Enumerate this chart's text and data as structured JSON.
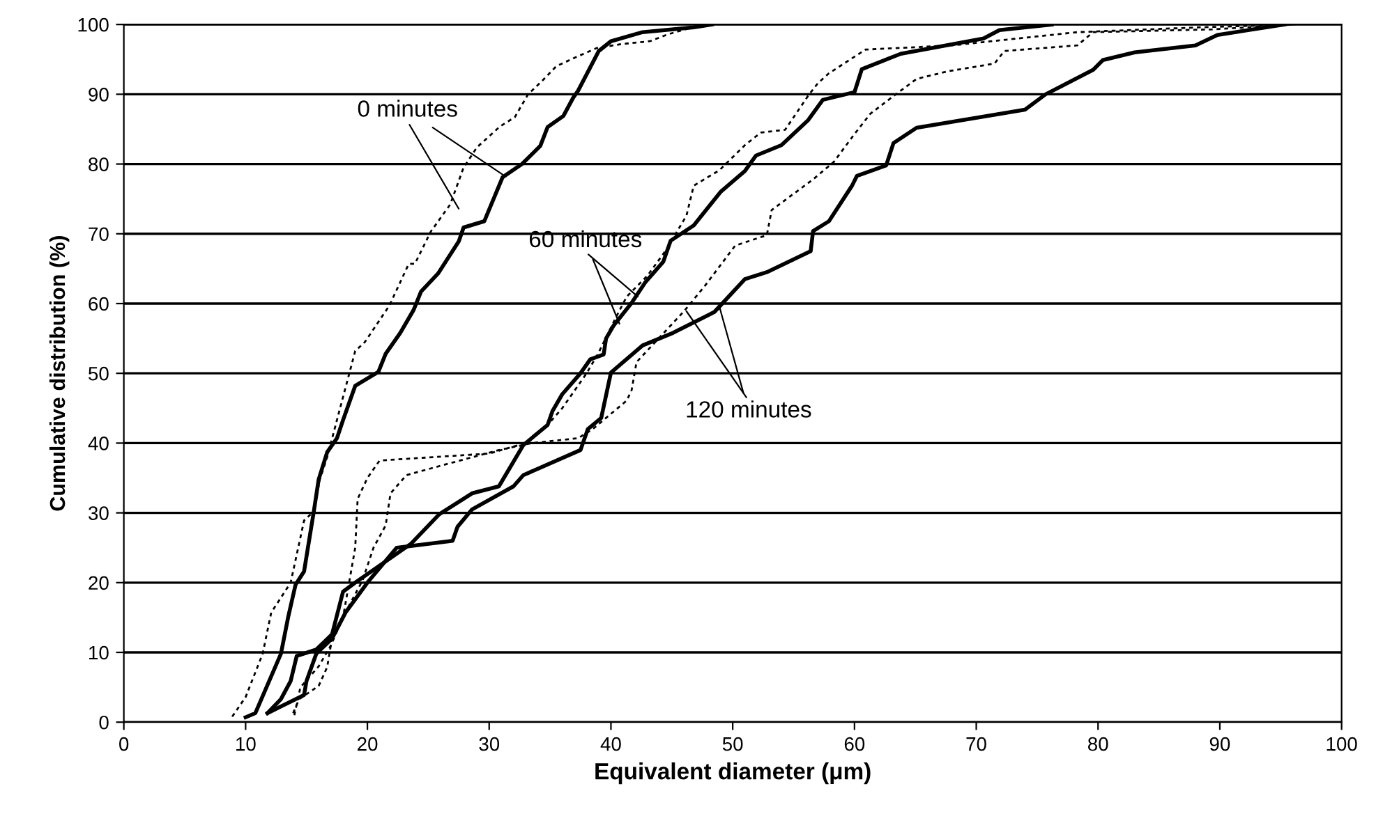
{
  "chart_data": {
    "type": "line",
    "xlabel": "Equivalent diameter (μm)",
    "ylabel": "Cumulative distribution (%)",
    "xlim": [
      0,
      100
    ],
    "ylim": [
      0,
      100
    ],
    "xticks": [
      0,
      10,
      20,
      30,
      40,
      50,
      60,
      70,
      80,
      90,
      100
    ],
    "yticks": [
      0,
      10,
      20,
      30,
      40,
      50,
      60,
      70,
      80,
      90,
      100
    ],
    "grid": "y",
    "marker": "none",
    "series": [
      {
        "color": "#000000",
        "line_style": "solid",
        "x": [
          10.0,
          10.8,
          12.9,
          13.5,
          14.1,
          14.8,
          15.6,
          16.0,
          16.7,
          17.5,
          18.0,
          19.0,
          20.9,
          21.5,
          22.7,
          23.8,
          24.4,
          25.8,
          27.5,
          27.9,
          29.6,
          31.1,
          32.7,
          34.2,
          34.8,
          36.1,
          36.9,
          37.3,
          39.0,
          40.0,
          42.6,
          46.8,
          48.3
        ],
        "values": [
          0.7,
          1.3,
          9.8,
          15.1,
          19.7,
          21.6,
          30.2,
          34.8,
          38.7,
          40.7,
          43.3,
          48.2,
          50.2,
          52.8,
          55.8,
          59.1,
          61.7,
          64.3,
          68.9,
          70.9,
          71.8,
          78.1,
          80.0,
          82.6,
          85.3,
          86.9,
          89.5,
          90.5,
          96.2,
          97.6,
          98.9,
          99.6,
          100
        ]
      },
      {
        "color": "#000000",
        "line_style": "dotted",
        "x": [
          8.9,
          10.0,
          11.4,
          12.1,
          13.7,
          14.8,
          15.6,
          16.1,
          16.7,
          17.5,
          19.0,
          19.8,
          20.3,
          21.8,
          23.4,
          23.9,
          25.2,
          26.8,
          27.9,
          29.0,
          30.9,
          32.1,
          33.2,
          34.4,
          35.5,
          37.1,
          38.8,
          40.9,
          43.2,
          44.7,
          47.5
        ],
        "values": [
          0.8,
          3.6,
          9.8,
          15.7,
          20.0,
          28.9,
          30.2,
          34.8,
          38.0,
          43.3,
          53.2,
          54.5,
          55.8,
          59.7,
          65.7,
          65.7,
          70.3,
          74.2,
          79.5,
          82.4,
          85.4,
          86.7,
          90.0,
          92.0,
          94.0,
          95.3,
          96.6,
          97.2,
          97.6,
          98.6,
          100
        ]
      },
      {
        "color": "#000000",
        "line_style": "solid",
        "x": [
          11.8,
          12.9,
          13.7,
          14.2,
          15.8,
          17.1,
          18.0,
          19.0,
          23.6,
          25.9,
          28.6,
          30.8,
          32.8,
          34.8,
          35.2,
          36.0,
          37.5,
          38.3,
          39.4,
          39.6,
          40.2,
          41.7,
          42.8,
          44.3,
          44.9,
          46.8,
          49.0,
          51.0,
          51.9,
          54.0,
          56.2,
          57.4,
          60.0,
          60.6,
          63.8,
          70.6,
          71.9,
          76.2
        ],
        "values": [
          1.3,
          3.3,
          5.9,
          9.5,
          10.4,
          12.6,
          18.7,
          20.0,
          25.6,
          29.8,
          32.8,
          33.8,
          39.7,
          42.6,
          44.6,
          47.0,
          50.0,
          52.0,
          52.7,
          55.0,
          56.8,
          60.1,
          63.0,
          66.0,
          69.0,
          71.2,
          76.0,
          79.0,
          81.2,
          82.7,
          86.3,
          89.2,
          90.3,
          93.6,
          95.8,
          98.0,
          99.2,
          100
        ]
      },
      {
        "color": "#000000",
        "line_style": "dotted",
        "x": [
          14.0,
          14.5,
          16.0,
          17.0,
          18.0,
          18.5,
          19.0,
          19.2,
          20.0,
          21.0,
          30.0,
          33.0,
          35.0,
          36.0,
          38.0,
          39.0,
          40.4,
          41.3,
          43.0,
          44.5,
          46.2,
          46.8,
          48.9,
          51.0,
          52.3,
          54.3,
          56.2,
          57.0,
          57.9,
          60.9,
          68.0,
          78.3,
          88.5,
          96.0
        ],
        "values": [
          1.0,
          5.0,
          8.0,
          11.0,
          15.0,
          20.0,
          25.0,
          32.0,
          35.0,
          37.5,
          38.5,
          40.0,
          43.0,
          45.0,
          50.0,
          53.0,
          58.0,
          61.0,
          64.0,
          67.6,
          72.6,
          76.9,
          79.1,
          82.7,
          84.5,
          84.9,
          89.8,
          91.6,
          93.0,
          96.4,
          97.0,
          98.9,
          99.6,
          100
        ]
      },
      {
        "color": "#000000",
        "line_style": "solid",
        "x": [
          11.8,
          14.8,
          15.0,
          15.8,
          17.1,
          18.2,
          20.0,
          22.4,
          27.0,
          27.4,
          28.6,
          32.0,
          32.8,
          37.5,
          38.1,
          39.2,
          40.0,
          42.6,
          45.1,
          48.5,
          51.0,
          52.8,
          56.4,
          56.6,
          57.9,
          59.8,
          60.2,
          62.6,
          63.2,
          65.1,
          74.0,
          75.7,
          79.6,
          80.4,
          83.0,
          88.0,
          89.8,
          95.3
        ],
        "values": [
          1.3,
          3.9,
          5.9,
          9.8,
          12.0,
          15.7,
          20.0,
          25.0,
          26.0,
          28.0,
          30.5,
          33.8,
          35.4,
          39.0,
          42.0,
          43.6,
          50.1,
          54.0,
          55.8,
          58.8,
          63.5,
          64.5,
          67.5,
          70.4,
          71.8,
          76.9,
          78.3,
          79.8,
          83.0,
          85.2,
          87.8,
          90.0,
          93.5,
          94.9,
          96.0,
          97.0,
          98.5,
          100
        ]
      },
      {
        "color": "#000000",
        "line_style": "dotted",
        "x": [
          13.9,
          14.4,
          16.0,
          16.7,
          17.1,
          18.8,
          19.6,
          20.5,
          21.5,
          21.9,
          23.2,
          25.9,
          30.8,
          33.5,
          37.3,
          38.5,
          41.3,
          41.7,
          42.1,
          46.0,
          47.7,
          50.2,
          52.8,
          53.2,
          56.6,
          58.3,
          60.0,
          61.3,
          63.4,
          65.1,
          67.7,
          71.5,
          72.3,
          78.3,
          79.6,
          89.4,
          96.2
        ],
        "values": [
          1.3,
          3.3,
          5.2,
          7.9,
          12.1,
          17.7,
          20.3,
          25.0,
          28.2,
          32.8,
          35.4,
          36.7,
          39.0,
          40.0,
          40.7,
          42.0,
          46.1,
          47.6,
          51.6,
          58.9,
          62.5,
          68.3,
          69.8,
          73.4,
          77.8,
          80.3,
          84.3,
          87.2,
          90.0,
          92.2,
          93.3,
          94.4,
          96.2,
          97.0,
          98.9,
          99.3,
          100
        ]
      }
    ],
    "annotations": [
      {
        "text": "0 minutes",
        "x": 31.1,
        "y": 78.5
      },
      {
        "text": "60 minutes",
        "x": 40.7,
        "y": 57.1
      },
      {
        "text": "120 minutes",
        "x": 48.9,
        "y": 59.6
      }
    ]
  }
}
